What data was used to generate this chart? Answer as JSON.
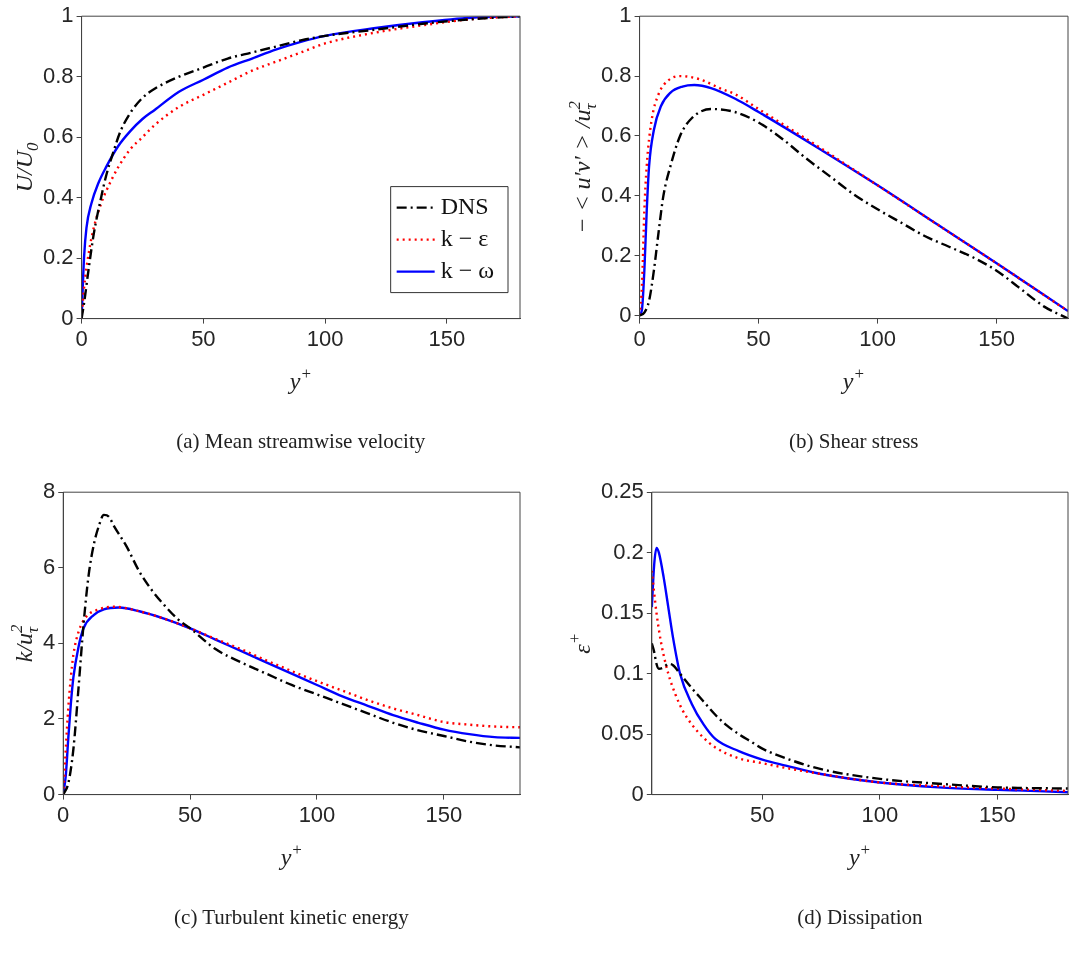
{
  "chart_data": [
    {
      "type": "line",
      "title": "(a) Mean streamwise velocity",
      "xlabel": "y$^{+}$",
      "ylabel": "U/U$_{0}$",
      "xlim": [
        0,
        180
      ],
      "xticks": [
        0,
        50,
        100,
        150
      ],
      "ylim": [
        0,
        1
      ],
      "yticks": [
        0,
        0.2,
        0.4,
        0.6,
        0.8,
        1
      ],
      "legend": "bottom right",
      "series": [
        {
          "name": "DNS",
          "color": "#000000",
          "line_style": "dashdot",
          "x": [
            0,
            1,
            3,
            5,
            8,
            10,
            13,
            16,
            20,
            25,
            30,
            40,
            50,
            60,
            70,
            80,
            90,
            100,
            120,
            140,
            160,
            180
          ],
          "values": [
            0,
            0.05,
            0.17,
            0.28,
            0.4,
            0.47,
            0.55,
            0.62,
            0.68,
            0.73,
            0.76,
            0.8,
            0.83,
            0.86,
            0.88,
            0.9,
            0.92,
            0.935,
            0.955,
            0.975,
            0.99,
            1
          ]
        },
        {
          "name": "k − ε",
          "color": "#ff0000",
          "line_style": "dotted",
          "x": [
            0,
            1,
            3,
            5,
            8,
            10,
            15,
            20,
            25,
            30,
            40,
            50,
            60,
            70,
            80,
            90,
            100,
            120,
            140,
            160,
            180
          ],
          "values": [
            0,
            0.1,
            0.22,
            0.3,
            0.38,
            0.42,
            0.5,
            0.56,
            0.6,
            0.64,
            0.7,
            0.74,
            0.78,
            0.82,
            0.85,
            0.88,
            0.91,
            0.945,
            0.97,
            0.99,
            1
          ]
        },
        {
          "name": "k − ω",
          "color": "#0000ff",
          "line_style": "solid",
          "x": [
            0,
            1,
            2,
            4,
            7,
            10,
            15,
            20,
            25,
            30,
            40,
            50,
            60,
            70,
            80,
            90,
            100,
            120,
            140,
            160,
            180
          ],
          "values": [
            0,
            0.2,
            0.3,
            0.38,
            0.45,
            0.5,
            0.57,
            0.62,
            0.66,
            0.69,
            0.75,
            0.79,
            0.83,
            0.86,
            0.89,
            0.915,
            0.935,
            0.96,
            0.98,
            0.995,
            1
          ]
        }
      ]
    },
    {
      "type": "line",
      "title": "(b) Shear stress",
      "xlabel": "y$^{+}$",
      "ylabel": "− < u′v′ > /u$_{τ}$$^{2}$",
      "xlim": [
        0,
        180
      ],
      "xticks": [
        0,
        50,
        100,
        150
      ],
      "ylim": [
        -0.01,
        1
      ],
      "yticks": [
        0,
        0.2,
        0.4,
        0.6,
        0.8,
        1
      ],
      "series": [
        {
          "color": "#000000",
          "line_style": "dashdot",
          "x": [
            0,
            2,
            4,
            6,
            8,
            10,
            13,
            17,
            22,
            30,
            40,
            50,
            60,
            70,
            80,
            90,
            100,
            110,
            120,
            130,
            140,
            150,
            160,
            170,
            180
          ],
          "values": [
            0,
            0.01,
            0.05,
            0.15,
            0.28,
            0.4,
            0.5,
            0.6,
            0.66,
            0.69,
            0.68,
            0.645,
            0.59,
            0.525,
            0.465,
            0.405,
            0.355,
            0.31,
            0.265,
            0.23,
            0.195,
            0.15,
            0.09,
            0.03,
            -0.01
          ]
        },
        {
          "color": "#ff0000",
          "line_style": "dotted",
          "x": [
            0,
            1,
            2,
            3,
            5,
            8,
            12,
            17,
            25,
            35,
            40,
            50,
            75,
            100,
            125,
            150,
            180
          ],
          "values": [
            0,
            0.1,
            0.35,
            0.5,
            0.65,
            0.74,
            0.785,
            0.8,
            0.79,
            0.755,
            0.74,
            0.69,
            0.565,
            0.435,
            0.305,
            0.175,
            0.015
          ]
        },
        {
          "color": "#0000ff",
          "line_style": "solid",
          "x": [
            0,
            1,
            2,
            3,
            4,
            6,
            9,
            13,
            18,
            23,
            30,
            40,
            50,
            75,
            100,
            125,
            150,
            180
          ],
          "values": [
            0,
            0.02,
            0.15,
            0.35,
            0.5,
            0.62,
            0.7,
            0.745,
            0.765,
            0.77,
            0.76,
            0.725,
            0.68,
            0.56,
            0.435,
            0.305,
            0.175,
            0.015
          ]
        }
      ]
    },
    {
      "type": "line",
      "title": "(c) Turbulent kinetic energy",
      "xlabel": "y$^{+}$",
      "ylabel": "k/u$_{τ}$$^{2}$",
      "xlim": [
        0,
        180
      ],
      "xticks": [
        0,
        50,
        100,
        150
      ],
      "ylim": [
        0,
        8
      ],
      "yticks": [
        0,
        2,
        4,
        6,
        8
      ],
      "series": [
        {
          "color": "#000000",
          "line_style": "dashdot",
          "x": [
            0,
            2,
            4,
            6,
            8,
            10,
            12,
            14,
            16,
            18,
            20,
            25,
            30,
            35,
            40,
            45,
            50,
            60,
            70,
            80,
            90,
            100,
            110,
            120,
            130,
            140,
            150,
            160,
            170,
            180
          ],
          "values": [
            0,
            0.3,
            1.2,
            2.8,
            4.5,
            5.8,
            6.6,
            7.1,
            7.4,
            7.35,
            7.1,
            6.56,
            5.9,
            5.4,
            5.0,
            4.65,
            4.4,
            3.85,
            3.5,
            3.2,
            2.9,
            2.65,
            2.4,
            2.15,
            1.9,
            1.7,
            1.55,
            1.4,
            1.3,
            1.25
          ]
        },
        {
          "color": "#ff0000",
          "line_style": "dotted",
          "x": [
            0,
            1,
            2,
            3,
            4,
            6,
            9,
            14,
            20,
            30,
            40,
            50,
            60,
            70,
            80,
            90,
            100,
            110,
            120,
            130,
            140,
            150,
            160,
            170,
            180
          ],
          "values": [
            0,
            1.2,
            2.3,
            3.1,
            3.7,
            4.3,
            4.7,
            4.9,
            4.97,
            4.85,
            4.65,
            4.4,
            4.12,
            3.85,
            3.55,
            3.27,
            3.0,
            2.75,
            2.5,
            2.28,
            2.1,
            1.92,
            1.85,
            1.8,
            1.78
          ]
        },
        {
          "color": "#0000ff",
          "line_style": "solid",
          "x": [
            0,
            1,
            2,
            3,
            4,
            6,
            8,
            12,
            16,
            22,
            30,
            40,
            50,
            60,
            70,
            80,
            90,
            100,
            110,
            120,
            130,
            140,
            150,
            160,
            170,
            180
          ],
          "values": [
            0,
            0.5,
            1.5,
            2.4,
            3.1,
            3.9,
            4.4,
            4.75,
            4.9,
            4.95,
            4.85,
            4.65,
            4.4,
            4.1,
            3.8,
            3.5,
            3.2,
            2.9,
            2.6,
            2.35,
            2.1,
            1.9,
            1.72,
            1.6,
            1.52,
            1.5
          ]
        }
      ]
    },
    {
      "type": "line",
      "title": "(d) Dissipation",
      "xlabel": "y$^{+}$",
      "ylabel": "ε$^{+}$",
      "xlim": [
        3,
        180
      ],
      "xticks": [
        50,
        100,
        150
      ],
      "ylim": [
        0,
        0.25
      ],
      "yticks": [
        0,
        0.05,
        0.1,
        0.15,
        0.2,
        0.25
      ],
      "series": [
        {
          "color": "#000000",
          "line_style": "dashdot",
          "x": [
            3,
            4,
            5,
            6,
            8,
            10,
            12,
            15,
            20,
            25,
            30,
            35,
            40,
            45,
            50,
            60,
            75,
            100,
            125,
            150,
            180
          ],
          "values": [
            0.125,
            0.118,
            0.108,
            0.104,
            0.105,
            0.108,
            0.107,
            0.1,
            0.088,
            0.077,
            0.066,
            0.057,
            0.05,
            0.044,
            0.038,
            0.03,
            0.021,
            0.013,
            0.009,
            0.006,
            0.005
          ]
        },
        {
          "color": "#ff0000",
          "line_style": "dotted",
          "x": [
            3,
            5,
            7,
            10,
            13,
            16,
            20,
            25,
            30,
            40,
            50,
            60,
            75,
            100,
            125,
            150,
            180
          ],
          "values": [
            0.185,
            0.15,
            0.125,
            0.1,
            0.083,
            0.07,
            0.058,
            0.047,
            0.039,
            0.03,
            0.026,
            0.022,
            0.017,
            0.01,
            0.007,
            0.005,
            0.003
          ]
        },
        {
          "color": "#0000ff",
          "line_style": "solid",
          "x": [
            3,
            4,
            5,
            6,
            8,
            10,
            12,
            15,
            20,
            25,
            30,
            40,
            50,
            60,
            75,
            100,
            125,
            150,
            180
          ],
          "values": [
            0.155,
            0.19,
            0.204,
            0.2,
            0.18,
            0.155,
            0.13,
            0.1,
            0.075,
            0.058,
            0.046,
            0.036,
            0.029,
            0.024,
            0.017,
            0.01,
            0.006,
            0.004,
            0.002
          ]
        }
      ]
    }
  ]
}
